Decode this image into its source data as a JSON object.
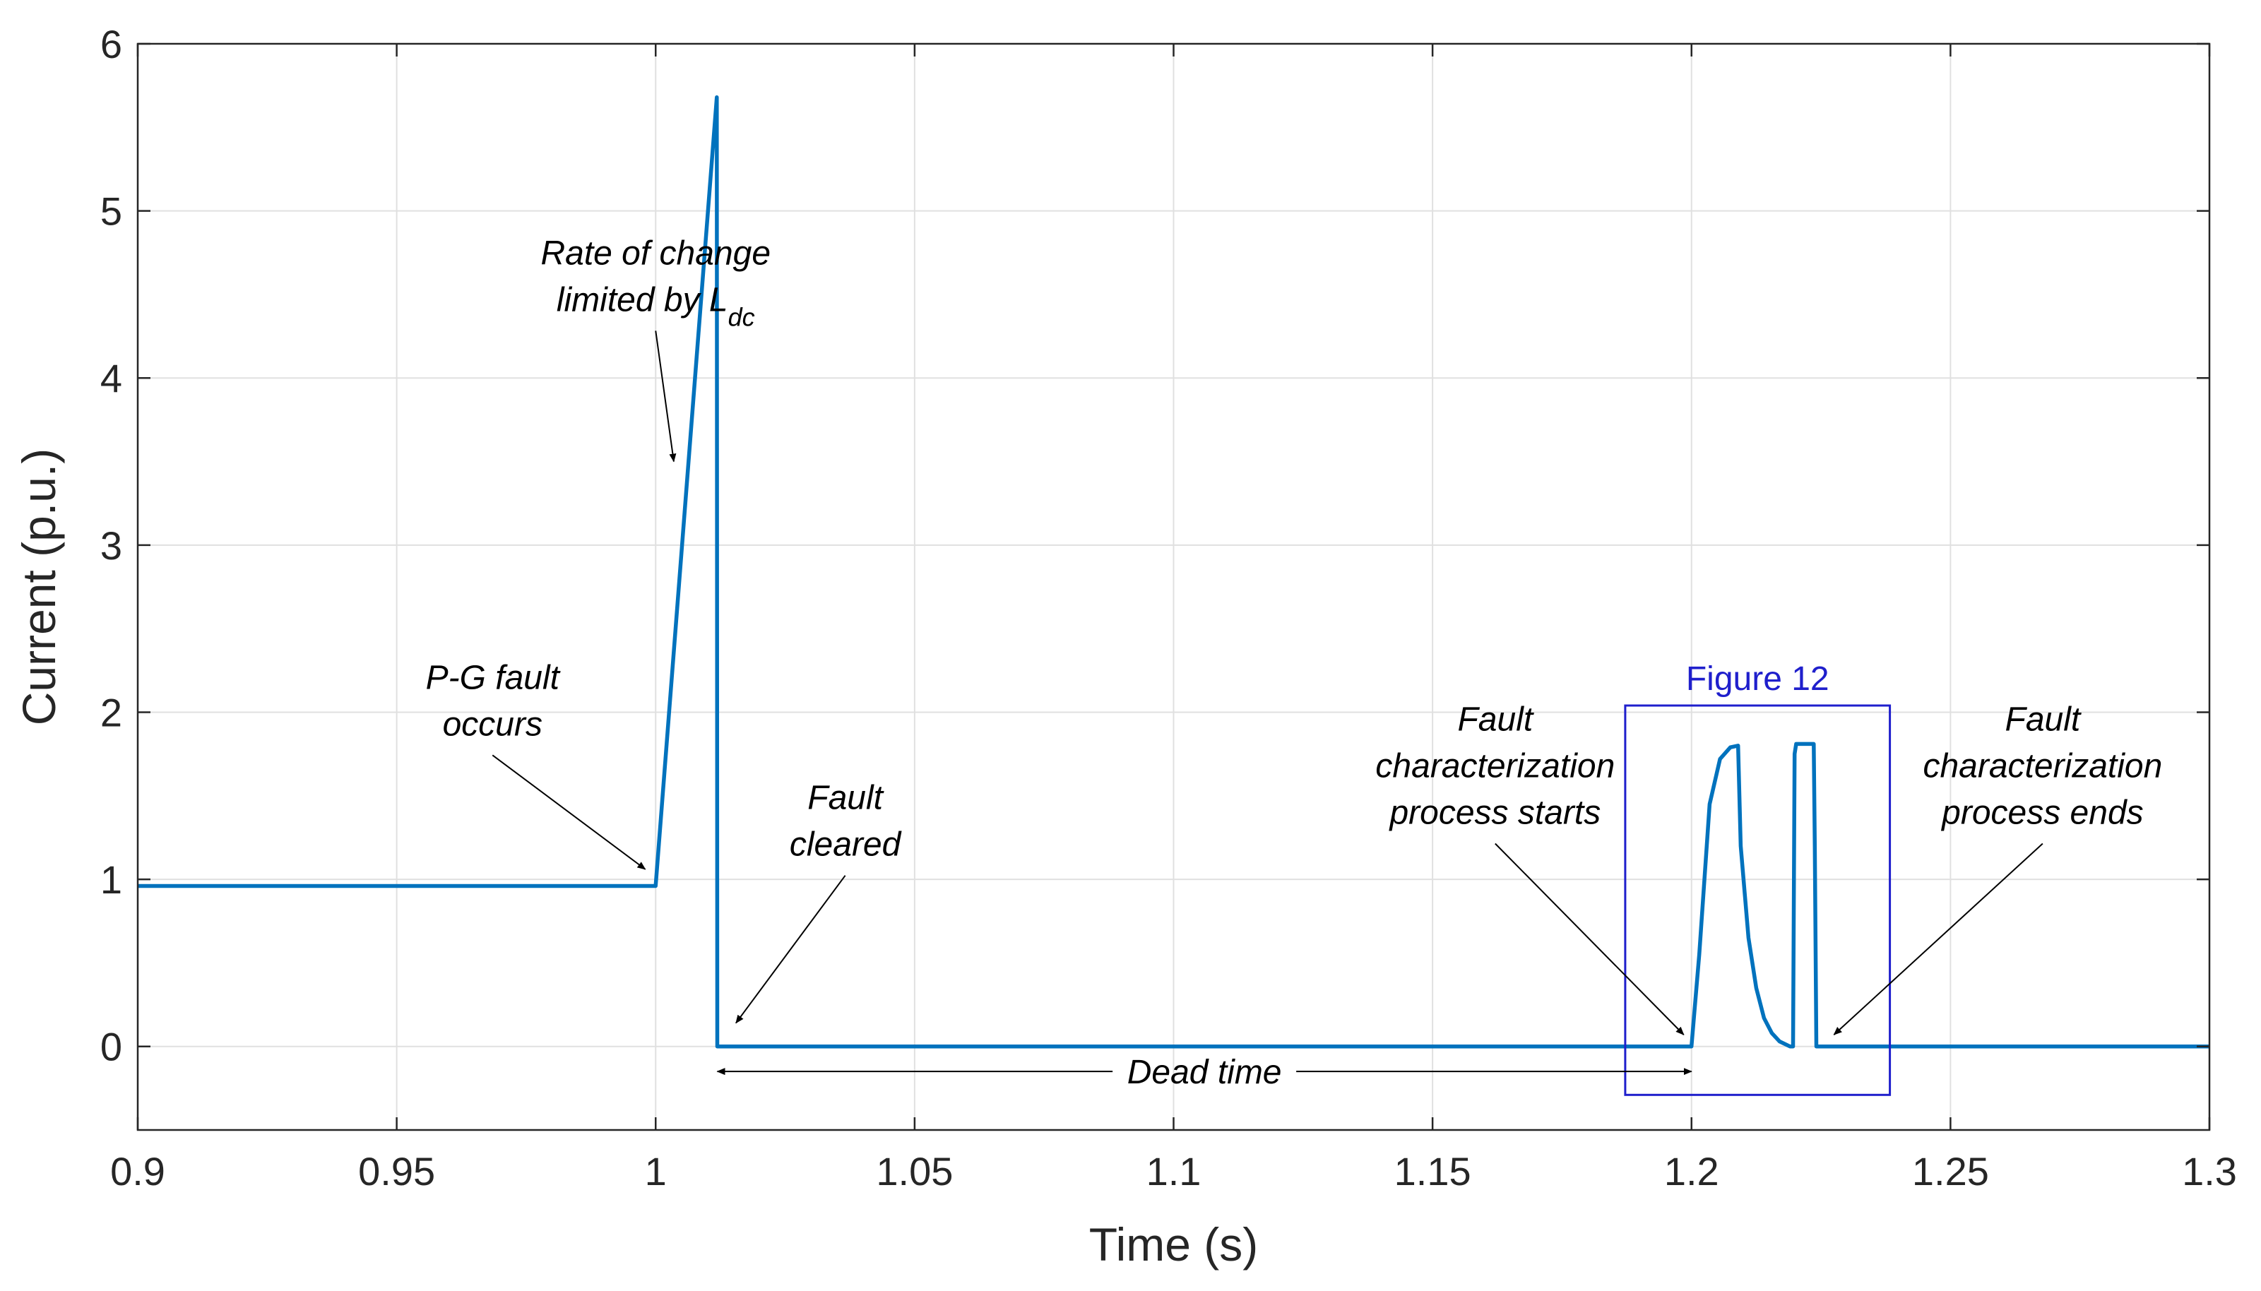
{
  "chart_data": {
    "type": "line",
    "title": "",
    "xlabel": "Time (s)",
    "ylabel": "Current (p.u.)",
    "xlim": [
      0.9,
      1.3
    ],
    "ylim": [
      -0.5,
      6
    ],
    "xticks": [
      0.9,
      0.95,
      1.0,
      1.05,
      1.1,
      1.15,
      1.2,
      1.25,
      1.3
    ],
    "xtick_labels": [
      "0.9",
      "0.95",
      "1",
      "1.05",
      "1.1",
      "1.15",
      "1.2",
      "1.25",
      "1.3"
    ],
    "yticks": [
      0,
      1,
      2,
      3,
      4,
      5,
      6
    ],
    "ytick_labels": [
      "0",
      "1",
      "2",
      "3",
      "4",
      "5",
      "6"
    ],
    "grid": true,
    "colors": {
      "series": "#0072BD",
      "highlight_box": "#1f1fcc",
      "grid": "#e0e0e0",
      "axis": "#262626",
      "annotation": "#000000"
    },
    "series": [
      {
        "name": "Current",
        "x": [
          0.9,
          1.0,
          1.0118,
          1.0119,
          1.2,
          1.2015,
          1.2035,
          1.2055,
          1.2075,
          1.209,
          1.2095,
          1.211,
          1.2125,
          1.214,
          1.2155,
          1.217,
          1.219,
          1.2196,
          1.2199,
          1.2202,
          1.2204,
          1.2206,
          1.2236,
          1.2238,
          1.2241,
          1.225,
          1.3
        ],
        "y": [
          0.96,
          0.96,
          5.68,
          0.0,
          0.0,
          0.55,
          1.45,
          1.72,
          1.79,
          1.8,
          1.2,
          0.65,
          0.35,
          0.17,
          0.08,
          0.03,
          0.0,
          0.0,
          1.75,
          1.81,
          1.81,
          1.81,
          1.81,
          1.2,
          0.0,
          0.0,
          0.0
        ]
      }
    ],
    "highlight_box": {
      "label": "Figure 12",
      "x_range": [
        1.1872,
        1.2383
      ],
      "y_range": [
        -0.29,
        2.04
      ]
    },
    "annotations": [
      {
        "lines": [
          "Rate of change",
          "limited by L"
        ],
        "subscript": "dc",
        "text_at": [
          1.0,
          4.68
        ],
        "arrow_to": [
          1.0035,
          3.5
        ]
      },
      {
        "lines": [
          "P-G fault",
          "occurs"
        ],
        "text_at": [
          0.9685,
          2.14
        ],
        "arrow_to": [
          0.998,
          1.06
        ]
      },
      {
        "lines": [
          "Fault",
          "cleared"
        ],
        "text_at": [
          1.0366,
          1.42
        ],
        "arrow_to": [
          1.0155,
          0.14
        ]
      },
      {
        "lines": [
          "Fault",
          "characterization",
          "process starts"
        ],
        "text_at": [
          1.1621,
          1.89
        ],
        "arrow_to": [
          1.1985,
          0.07
        ]
      },
      {
        "lines": [
          "Fault",
          "characterization",
          "process ends"
        ],
        "text_at": [
          1.2678,
          1.89
        ],
        "arrow_to": [
          1.2275,
          0.07
        ]
      }
    ],
    "span_annotation": {
      "label": "Dead time",
      "x_range": [
        1.0119,
        1.2
      ],
      "y": -0.15
    }
  }
}
